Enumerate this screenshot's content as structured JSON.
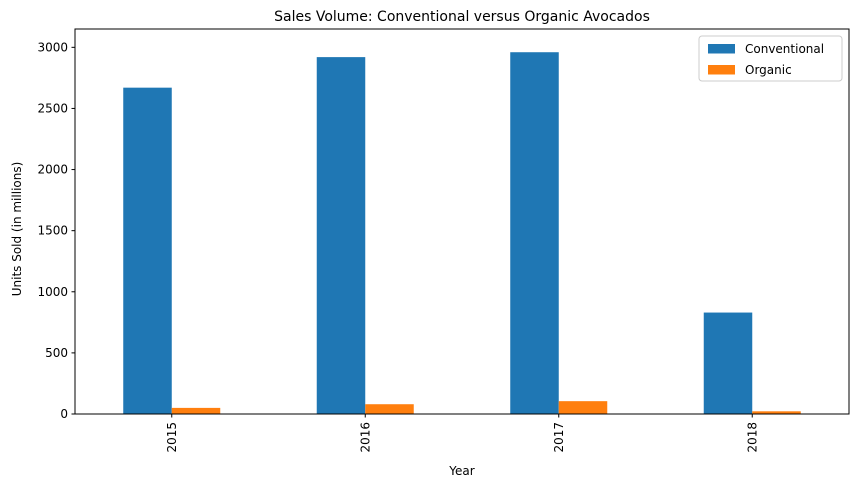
{
  "chart_data": {
    "type": "bar",
    "title": "Sales Volume: Conventional versus Organic Avocados",
    "xlabel": "Year",
    "ylabel": "Units Sold (in millions)",
    "categories": [
      "2015",
      "2016",
      "2017",
      "2018"
    ],
    "series": [
      {
        "name": "Conventional",
        "color": "#1f77b4",
        "values": [
          2670,
          2920,
          2960,
          830
        ]
      },
      {
        "name": "Organic",
        "color": "#ff7f0e",
        "values": [
          50,
          80,
          105,
          22
        ]
      }
    ],
    "ylim": [
      0,
      3150
    ],
    "yticks": [
      0,
      500,
      1000,
      1500,
      2000,
      2500,
      3000
    ],
    "ytick_labels": [
      "0",
      "500",
      "1000",
      "1500",
      "2000",
      "2500",
      "3000"
    ],
    "xtick_rotation": "vertical",
    "legend_position": "top-right",
    "grid": false
  }
}
